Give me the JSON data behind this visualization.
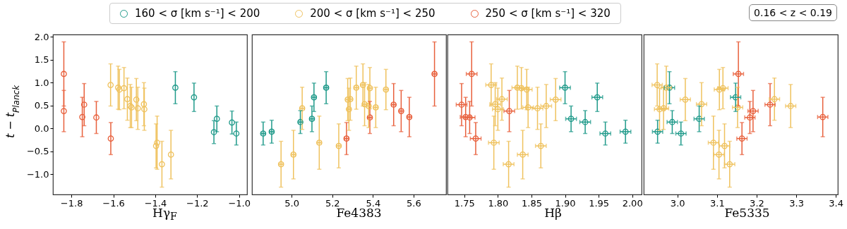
{
  "chart_data": [
    {
      "type": "scatter",
      "xlabel": "Hγ$_{F}$",
      "ylabel": "t − t$_{Planck}$",
      "xlim": [
        -1.888,
        -0.962
      ],
      "xticks": [
        {
          "value": -1.8,
          "label": "−1.8"
        },
        {
          "value": -1.6,
          "label": "−1.6"
        },
        {
          "value": -1.4,
          "label": "−1.4"
        },
        {
          "value": -1.2,
          "label": "−1.2"
        },
        {
          "value": -1.0,
          "label": "−1.0"
        }
      ],
      "ylim": [
        -1.44,
        2.05
      ],
      "yticks": [
        {
          "value": -1.0,
          "label": "−1.0"
        },
        {
          "value": -0.5,
          "label": "−0.5"
        },
        {
          "value": 0,
          "label": "0.0"
        },
        {
          "value": 0.5,
          "label": "0.5"
        },
        {
          "value": 1.0,
          "label": "1.0"
        },
        {
          "value": 1.5,
          "label": "1.5"
        },
        {
          "value": 2.0,
          "label": "2.0"
        }
      ],
      "marker": "circle",
      "legend": "top",
      "series": [
        {
          "name": "160 < σ [km s⁻¹] <  200",
          "color": "#1f9a8a",
          "x": [
            -1.304,
            -1.215,
            -1.12,
            -1.106,
            -1.034,
            -1.013
          ],
          "values": [
            0.89,
            0.68,
            -0.08,
            0.21,
            0.13,
            -0.11
          ],
          "errors": [
            0.35,
            0.31,
            0.25,
            0.28,
            0.25,
            0.25
          ]
        },
        {
          "name": "200 < σ [km s⁻¹] <  250",
          "color": "#efc25e",
          "x": [
            -1.613,
            -1.577,
            -1.571,
            -1.549,
            -1.533,
            -1.519,
            -1.513,
            -1.49,
            -1.483,
            -1.454,
            -1.452,
            -1.396,
            -1.391,
            -1.368,
            -1.325
          ],
          "values": [
            0.95,
            0.89,
            0.85,
            0.88,
            0.64,
            0.49,
            0.46,
            0.63,
            0.44,
            0.53,
            0.42,
            -0.38,
            -0.31,
            -0.78,
            -0.57
          ],
          "errors": [
            0.46,
            0.47,
            0.44,
            0.45,
            0.46,
            0.47,
            0.44,
            0.46,
            0.46,
            0.47,
            0.46,
            0.48,
            0.58,
            0.5,
            0.53
          ]
        },
        {
          "name": "250 < σ [km s⁻¹] <  320",
          "color": "#e8603c",
          "x": [
            -1.836,
            -1.836,
            -1.748,
            -1.739,
            -1.681,
            -1.612
          ],
          "values": [
            1.19,
            0.38,
            0.25,
            0.52,
            0.24,
            -0.22
          ],
          "errors": [
            0.7,
            0.45,
            0.43,
            0.46,
            0.35,
            0.35
          ]
        }
      ]
    },
    {
      "type": "scatter",
      "xlabel": "Fe4383",
      "xlim": [
        4.805,
        5.76
      ],
      "xticks": [
        {
          "value": 5.0,
          "label": "5.0"
        },
        {
          "value": 5.2,
          "label": "5.2"
        },
        {
          "value": 5.4,
          "label": "5.4"
        },
        {
          "value": 5.6,
          "label": "5.6"
        }
      ],
      "ylim": [
        -1.44,
        2.05
      ],
      "tick_labels": "x",
      "marker": "circle",
      "series": [
        {
          "color": "#1f9a8a",
          "x": [
            4.86,
            4.902,
            5.043,
            5.1,
            5.11,
            5.17
          ],
          "values": [
            -0.11,
            -0.07,
            0.14,
            0.21,
            0.68,
            0.89
          ],
          "errors": [
            0.25,
            0.25,
            0.25,
            0.28,
            0.31,
            0.35
          ],
          "xerrors": [
            0.009,
            0.009,
            0.009,
            0.009,
            0.009,
            0.009
          ]
        },
        {
          "color": "#efc25e",
          "x": [
            4.948,
            5.009,
            5.052,
            5.136,
            5.232,
            5.276,
            5.282,
            5.289,
            5.318,
            5.351,
            5.359,
            5.379,
            5.385,
            5.414,
            5.464
          ],
          "values": [
            -0.78,
            -0.57,
            0.44,
            -0.31,
            -0.38,
            0.63,
            0.42,
            0.64,
            0.89,
            0.95,
            0.53,
            0.49,
            0.88,
            0.46,
            0.85
          ],
          "errors": [
            0.5,
            0.53,
            0.46,
            0.58,
            0.48,
            0.46,
            0.46,
            0.46,
            0.47,
            0.46,
            0.47,
            0.47,
            0.45,
            0.44,
            0.44
          ],
          "xerrors": [
            0.009,
            0.009,
            0.009,
            0.009,
            0.009,
            0.009,
            0.009,
            0.009,
            0.009,
            0.009,
            0.009,
            0.009,
            0.009,
            0.009,
            0.009
          ]
        },
        {
          "color": "#e8603c",
          "x": [
            5.27,
            5.385,
            5.502,
            5.539,
            5.579,
            5.703
          ],
          "values": [
            -0.22,
            0.24,
            0.52,
            0.38,
            0.25,
            1.19
          ],
          "errors": [
            0.35,
            0.35,
            0.46,
            0.45,
            0.43,
            0.7
          ],
          "xerrors": [
            0.009,
            0.009,
            0.009,
            0.009,
            0.009,
            0.009
          ]
        }
      ]
    },
    {
      "type": "scatter",
      "xlabel": "Hβ",
      "xlim": [
        1.725,
        2.014
      ],
      "xticks": [
        {
          "value": 1.75,
          "label": "1.75"
        },
        {
          "value": 1.8,
          "label": "1.80"
        },
        {
          "value": 1.85,
          "label": "1.85"
        },
        {
          "value": 1.9,
          "label": "1.90"
        },
        {
          "value": 1.95,
          "label": "1.95"
        },
        {
          "value": 2.0,
          "label": "2.00"
        }
      ],
      "ylim": [
        -1.44,
        2.05
      ],
      "tick_labels": "x",
      "marker": "circle",
      "series": [
        {
          "color": "#1f9a8a",
          "x": [
            1.9,
            1.909,
            1.93,
            1.948,
            1.96,
            1.99
          ],
          "values": [
            0.89,
            0.21,
            0.14,
            0.68,
            -0.11,
            -0.07
          ],
          "errors": [
            0.35,
            0.28,
            0.25,
            0.31,
            0.25,
            0.25
          ],
          "xerrors": [
            0.008,
            0.008,
            0.008,
            0.008,
            0.008,
            0.008
          ]
        },
        {
          "color": "#efc25e",
          "x": [
            1.79,
            1.794,
            1.796,
            1.8,
            1.806,
            1.816,
            1.829,
            1.835,
            1.837,
            1.843,
            1.845,
            1.859,
            1.864,
            1.872,
            1.886
          ],
          "values": [
            0.95,
            -0.31,
            0.53,
            0.42,
            0.64,
            -0.78,
            0.89,
            0.88,
            -0.57,
            0.85,
            0.46,
            0.44,
            -0.38,
            0.49,
            0.63
          ],
          "errors": [
            0.46,
            0.58,
            0.47,
            0.46,
            0.46,
            0.5,
            0.47,
            0.45,
            0.53,
            0.44,
            0.44,
            0.46,
            0.48,
            0.47,
            0.46
          ],
          "xerrors": [
            0.008,
            0.008,
            0.008,
            0.008,
            0.008,
            0.008,
            0.008,
            0.008,
            0.008,
            0.008,
            0.008,
            0.008,
            0.008,
            0.008,
            0.008
          ]
        },
        {
          "color": "#e8603c",
          "x": [
            1.746,
            1.752,
            1.758,
            1.761,
            1.767,
            1.817
          ],
          "values": [
            0.52,
            0.25,
            0.24,
            1.19,
            -0.22,
            0.38
          ],
          "errors": [
            0.46,
            0.43,
            0.35,
            0.7,
            0.35,
            0.45
          ],
          "xerrors": [
            0.008,
            0.008,
            0.008,
            0.008,
            0.008,
            0.008
          ]
        }
      ]
    },
    {
      "type": "scatter",
      "xlabel": "Fe5335",
      "xlim": [
        2.915,
        3.405
      ],
      "xticks": [
        {
          "value": 3.0,
          "label": "3.0"
        },
        {
          "value": 3.1,
          "label": "3.1"
        },
        {
          "value": 3.2,
          "label": "3.2"
        },
        {
          "value": 3.3,
          "label": "3.3"
        },
        {
          "value": 3.4,
          "label": "3.4"
        }
      ],
      "ylim": [
        -1.44,
        2.05
      ],
      "tick_labels": "x",
      "marker": "circle",
      "annotations": [
        "0.16 < z < 0.19"
      ],
      "series": [
        {
          "color": "#1f9a8a",
          "x": [
            2.95,
            2.98,
            2.987,
            3.009,
            3.055,
            3.147
          ],
          "values": [
            -0.07,
            0.89,
            0.14,
            -0.11,
            0.21,
            0.68
          ],
          "errors": [
            0.25,
            0.35,
            0.25,
            0.25,
            0.28,
            0.31
          ],
          "xerrors": [
            0.013,
            0.013,
            0.013,
            0.013,
            0.013,
            0.013
          ]
        },
        {
          "color": "#efc25e",
          "x": [
            2.949,
            2.955,
            2.965,
            2.972,
            3.02,
            3.061,
            3.091,
            3.105,
            3.106,
            3.115,
            3.119,
            3.132,
            3.152,
            3.245,
            3.286
          ],
          "values": [
            0.95,
            0.42,
            0.44,
            0.89,
            0.63,
            0.53,
            -0.31,
            -0.57,
            0.85,
            0.88,
            -0.38,
            -0.78,
            0.46,
            0.64,
            0.49
          ],
          "errors": [
            0.46,
            0.46,
            0.46,
            0.47,
            0.46,
            0.47,
            0.58,
            0.53,
            0.44,
            0.45,
            0.48,
            0.5,
            0.44,
            0.46,
            0.47
          ],
          "xerrors": [
            0.013,
            0.013,
            0.013,
            0.013,
            0.013,
            0.013,
            0.013,
            0.013,
            0.013,
            0.013,
            0.013,
            0.013,
            0.013,
            0.013,
            0.013
          ]
        },
        {
          "color": "#e8603c",
          "x": [
            3.154,
            3.163,
            3.183,
            3.191,
            3.234,
            3.367
          ],
          "values": [
            1.19,
            -0.22,
            0.24,
            0.38,
            0.52,
            0.25
          ],
          "errors": [
            0.7,
            0.35,
            0.35,
            0.45,
            0.46,
            0.43
          ],
          "xerrors": [
            0.013,
            0.013,
            0.013,
            0.013,
            0.013,
            0.013
          ]
        }
      ]
    }
  ]
}
